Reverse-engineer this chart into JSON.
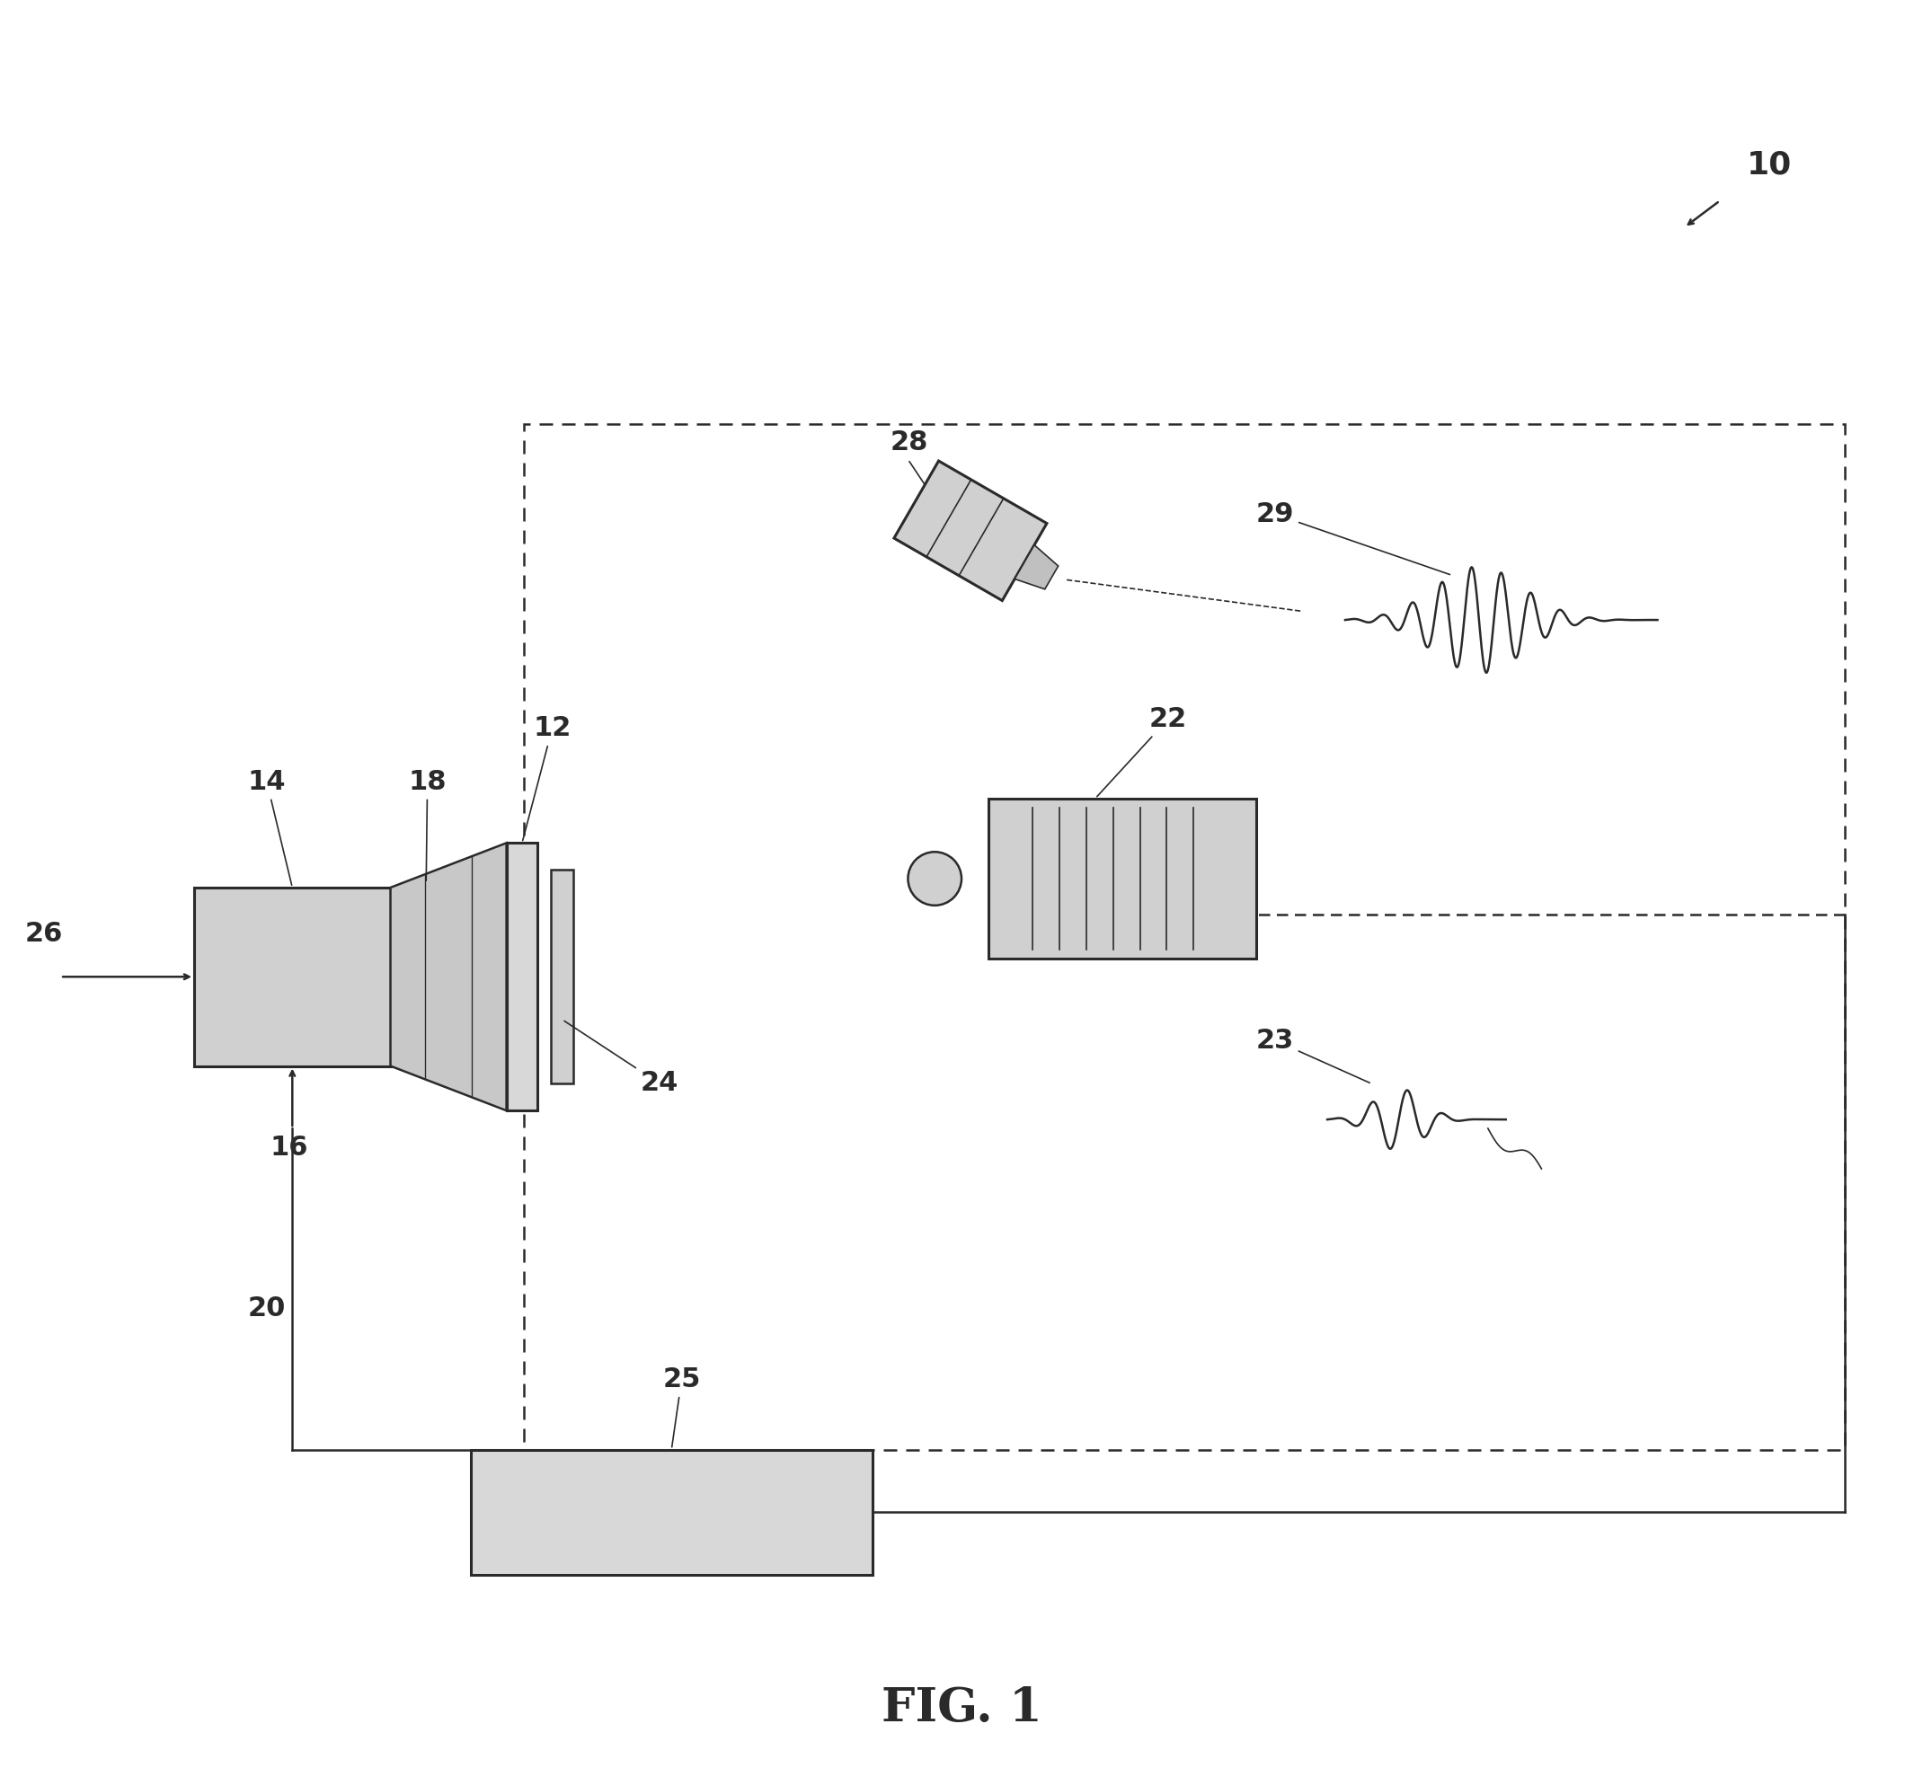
{
  "bg_color": "#ffffff",
  "line_color": "#2a2a2a",
  "fill_color": "#e8e8e8",
  "fig_label": "FIG. 1",
  "ref_num_10": "10",
  "ref_num_12": "12",
  "ref_num_14": "14",
  "ref_num_16": "16",
  "ref_num_18": "18",
  "ref_num_20": "20",
  "ref_num_22": "22",
  "ref_num_23": "23",
  "ref_num_24": "24",
  "ref_num_25": "25",
  "ref_num_26": "26",
  "ref_num_28": "28",
  "ref_num_29": "29"
}
